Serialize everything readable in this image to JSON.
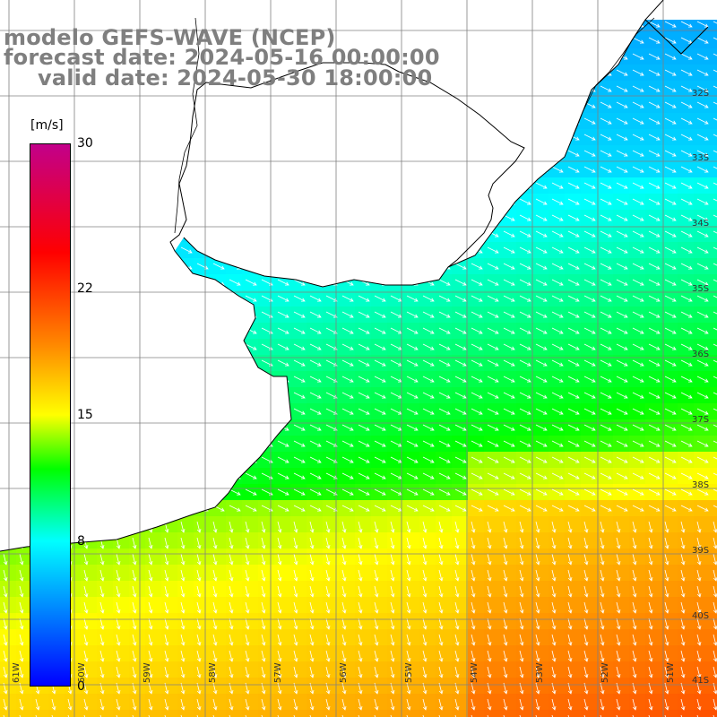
{
  "title": {
    "line1": "modelo GEFS-WAVE (NCEP)",
    "line2": "forecast date: 2024-05-16 00:00:00",
    "line3": "valid date: 2024-05-30 18:00:00"
  },
  "colorbar": {
    "unit": "[m/s]",
    "ticks": [
      "30",
      "22",
      "15",
      "8",
      "0"
    ],
    "tick_values": [
      30,
      22,
      15,
      8,
      0
    ],
    "min": 0,
    "max": 30,
    "stops": [
      "#0000ff",
      "#00ffff",
      "#00ff00",
      "#ffff00",
      "#ff8800",
      "#ff0000",
      "#c2008a"
    ]
  },
  "map": {
    "lat_labels": [
      "32S",
      "33S",
      "34S",
      "35S",
      "36S",
      "37S",
      "38S",
      "39S",
      "40S",
      "41S"
    ],
    "lon_labels": [
      "61W",
      "60W",
      "59W",
      "58W",
      "57W",
      "56W",
      "55W",
      "54W",
      "53W",
      "52W",
      "51W"
    ],
    "land_color": "#ffffff",
    "coast_color": "#000000",
    "grid_color": "#808080",
    "arrow_color": "#ffffff"
  }
}
